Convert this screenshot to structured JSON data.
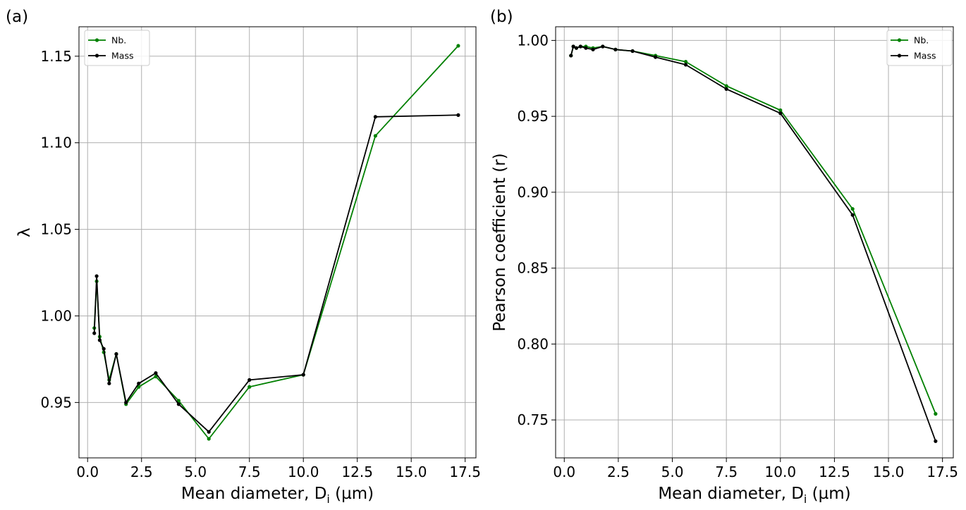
{
  "chart_data": [
    {
      "type": "line",
      "panel_label": "(a)",
      "xlabel_main": "Mean diameter, D",
      "xlabel_sub": "i",
      "xlabel_unit": " (µm)",
      "ylabel": "λ",
      "xlim": [
        -0.4,
        18.0
      ],
      "ylim": [
        0.918,
        1.167
      ],
      "xticks": [
        0.0,
        2.5,
        5.0,
        7.5,
        10.0,
        12.5,
        15.0,
        17.5
      ],
      "xtick_labels": [
        "0.0",
        "2.5",
        "5.0",
        "7.5",
        "10.0",
        "12.5",
        "15.0",
        "17.5"
      ],
      "yticks": [
        0.95,
        1.0,
        1.05,
        1.1,
        1.15
      ],
      "ytick_labels": [
        "0.95",
        "1.00",
        "1.05",
        "1.10",
        "1.15"
      ],
      "grid": true,
      "legend_position": "top-left",
      "series": [
        {
          "name": "Nb.",
          "color": "#008000",
          "x": [
            0.31,
            0.42,
            0.56,
            0.75,
            1.0,
            1.33,
            1.78,
            2.37,
            3.16,
            4.22,
            5.62,
            7.5,
            10.0,
            13.34,
            17.18
          ],
          "y": [
            0.993,
            1.02,
            0.988,
            0.979,
            0.963,
            0.978,
            0.949,
            0.959,
            0.965,
            0.951,
            0.929,
            0.959,
            0.966,
            1.104,
            1.156
          ]
        },
        {
          "name": "Mass",
          "color": "#000000",
          "x": [
            0.31,
            0.42,
            0.56,
            0.75,
            1.0,
            1.33,
            1.78,
            2.37,
            3.16,
            4.22,
            5.62,
            7.5,
            10.0,
            13.34,
            17.18
          ],
          "y": [
            0.99,
            1.023,
            0.986,
            0.981,
            0.961,
            0.978,
            0.95,
            0.961,
            0.967,
            0.949,
            0.933,
            0.963,
            0.966,
            1.115,
            1.116
          ]
        }
      ]
    },
    {
      "type": "line",
      "panel_label": "(b)",
      "xlabel_main": "Mean diameter, D",
      "xlabel_sub": "i",
      "xlabel_unit": " (µm)",
      "ylabel": "Pearson coefficient (r)",
      "xlim": [
        -0.4,
        18.0
      ],
      "ylim": [
        0.725,
        1.009
      ],
      "xticks": [
        0.0,
        2.5,
        5.0,
        7.5,
        10.0,
        12.5,
        15.0,
        17.5
      ],
      "xtick_labels": [
        "0.0",
        "2.5",
        "5.0",
        "7.5",
        "10.0",
        "12.5",
        "15.0",
        "17.5"
      ],
      "yticks": [
        0.75,
        0.8,
        0.85,
        0.9,
        0.95,
        1.0
      ],
      "ytick_labels": [
        "0.75",
        "0.80",
        "0.85",
        "0.90",
        "0.95",
        "1.00"
      ],
      "grid": true,
      "legend_position": "top-right",
      "series": [
        {
          "name": "Nb.",
          "color": "#008000",
          "x": [
            0.31,
            0.42,
            0.56,
            0.75,
            1.0,
            1.33,
            1.78,
            2.37,
            3.16,
            4.22,
            5.62,
            7.5,
            10.0,
            13.34,
            17.18
          ],
          "y": [
            0.99,
            0.996,
            0.995,
            0.996,
            0.996,
            0.995,
            0.996,
            0.994,
            0.993,
            0.99,
            0.986,
            0.97,
            0.954,
            0.889,
            0.754
          ]
        },
        {
          "name": "Mass",
          "color": "#000000",
          "x": [
            0.31,
            0.42,
            0.56,
            0.75,
            1.0,
            1.33,
            1.78,
            2.37,
            3.16,
            4.22,
            5.62,
            7.5,
            10.0,
            13.34,
            17.18
          ],
          "y": [
            0.99,
            0.996,
            0.995,
            0.996,
            0.995,
            0.994,
            0.996,
            0.994,
            0.993,
            0.989,
            0.984,
            0.968,
            0.952,
            0.885,
            0.736
          ]
        }
      ]
    }
  ]
}
